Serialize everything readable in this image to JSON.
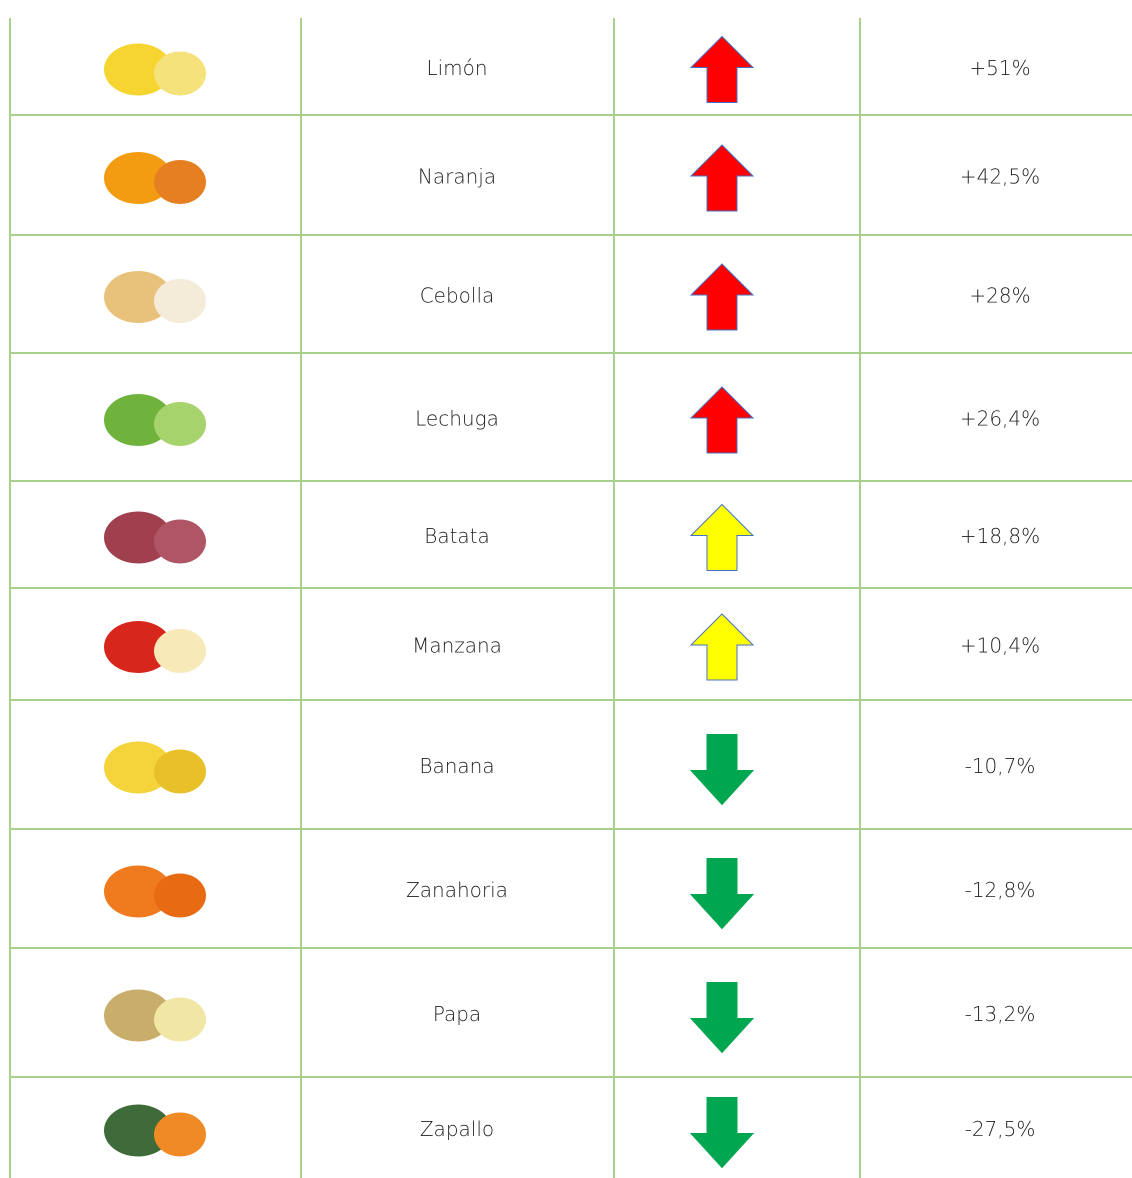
{
  "table": {
    "rows": [
      {
        "name": "Limón",
        "change": "+51%",
        "arrow": {
          "direction": "up",
          "color": "#ff0000"
        }
      },
      {
        "name": "Naranja",
        "change": "+42,5%",
        "arrow": {
          "direction": "up",
          "color": "#ff0000"
        }
      },
      {
        "name": "Cebolla",
        "change": "+28%",
        "arrow": {
          "direction": "up",
          "color": "#ff0000"
        }
      },
      {
        "name": "Lechuga",
        "change": "+26,4%",
        "arrow": {
          "direction": "up",
          "color": "#ff0000"
        }
      },
      {
        "name": "Batata",
        "change": "+18,8%",
        "arrow": {
          "direction": "up",
          "color": "#ffff00"
        }
      },
      {
        "name": "Manzana",
        "change": "+10,4%",
        "arrow": {
          "direction": "up",
          "color": "#ffff00"
        }
      },
      {
        "name": "Banana",
        "change": "-10,7%",
        "arrow": {
          "direction": "down",
          "color": "#00a650"
        }
      },
      {
        "name": "Zanahoria",
        "change": "-12,8%",
        "arrow": {
          "direction": "down",
          "color": "#00a650"
        }
      },
      {
        "name": "Papa",
        "change": "-13,2%",
        "arrow": {
          "direction": "down",
          "color": "#00a650"
        }
      },
      {
        "name": "Zapallo",
        "change": "-27,5%",
        "arrow": {
          "direction": "down",
          "color": "#00a650"
        }
      }
    ]
  }
}
